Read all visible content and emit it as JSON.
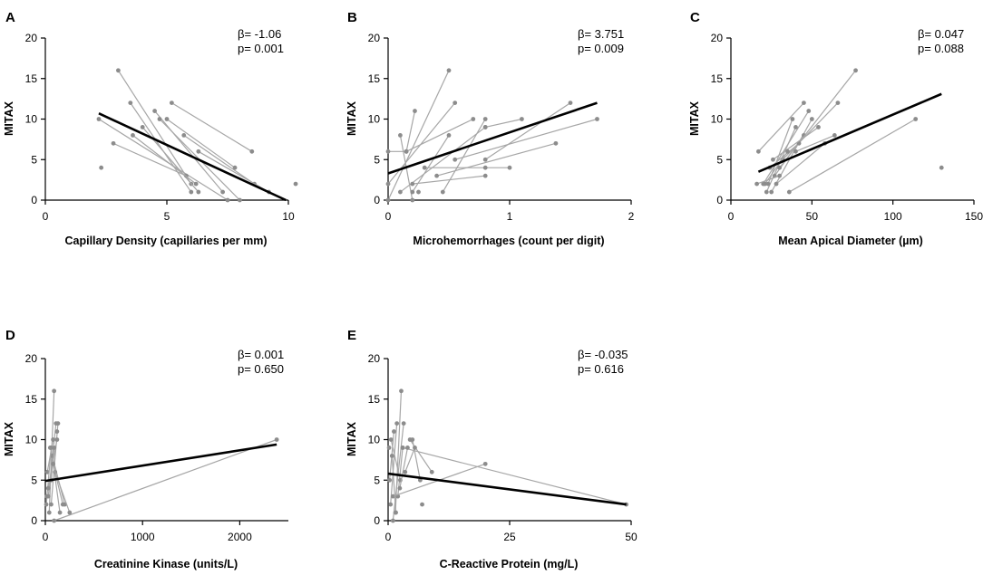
{
  "figure": {
    "y_axis_label": "MITAX"
  },
  "chart_data": [
    {
      "type": "scatter",
      "panel": "A",
      "xlabel": "Capillary Density (capillaries per mm)",
      "ylabel": "MITAX",
      "xlim": [
        0,
        10
      ],
      "ylim": [
        0,
        20
      ],
      "xticks": [
        0,
        5,
        10
      ],
      "yticks": [
        0,
        5,
        10,
        15,
        20
      ],
      "stats": {
        "beta": "β= -1.06",
        "p": "p= 0.001"
      },
      "fit": {
        "x": [
          2.2,
          9.9
        ],
        "y": [
          10.7,
          0
        ]
      },
      "pairs": [
        {
          "x": [
            3.0,
            6.0
          ],
          "y": [
            16,
            2
          ]
        },
        {
          "x": [
            2.2,
            7.5
          ],
          "y": [
            10,
            0
          ]
        },
        {
          "x": [
            3.5,
            6.0
          ],
          "y": [
            12,
            1
          ]
        },
        {
          "x": [
            4.0,
            6.3
          ],
          "y": [
            9,
            1
          ]
        },
        {
          "x": [
            4.5,
            7.3
          ],
          "y": [
            11,
            1
          ]
        },
        {
          "x": [
            5.2,
            8.5
          ],
          "y": [
            12,
            6
          ]
        },
        {
          "x": [
            2.8,
            5.8
          ],
          "y": [
            7,
            3
          ]
        },
        {
          "x": [
            4.7,
            8.0
          ],
          "y": [
            10,
            0
          ]
        },
        {
          "x": [
            5.0,
            7.8
          ],
          "y": [
            10,
            4
          ]
        },
        {
          "x": [
            5.7,
            8.6
          ],
          "y": [
            8,
            2
          ]
        },
        {
          "x": [
            3.6,
            6.2
          ],
          "y": [
            8,
            2
          ]
        },
        {
          "x": [
            6.3,
            9.2
          ],
          "y": [
            6,
            1
          ]
        }
      ],
      "points": [
        {
          "x": 2.3,
          "y": 4
        },
        {
          "x": 10.3,
          "y": 2
        }
      ]
    },
    {
      "type": "scatter",
      "panel": "B",
      "xlabel": "Microhemorrhages (count per digit)",
      "ylabel": "MITAX",
      "xlim": [
        0,
        2
      ],
      "ylim": [
        0,
        20
      ],
      "xticks": [
        0,
        1,
        2
      ],
      "yticks": [
        0,
        5,
        10,
        15,
        20
      ],
      "stats": {
        "beta": "β= 3.751",
        "p": "p= 0.009"
      },
      "fit": {
        "x": [
          0.0,
          1.72
        ],
        "y": [
          3.3,
          12.0
        ]
      },
      "pairs": [
        {
          "x": [
            0.0,
            0.5
          ],
          "y": [
            0,
            16
          ]
        },
        {
          "x": [
            0.0,
            0.55
          ],
          "y": [
            2,
            12
          ]
        },
        {
          "x": [
            0.0,
            0.15
          ],
          "y": [
            6,
            6
          ]
        },
        {
          "x": [
            0.1,
            0.2
          ],
          "y": [
            8,
            0
          ]
        },
        {
          "x": [
            0.15,
            0.22
          ],
          "y": [
            6,
            11
          ]
        },
        {
          "x": [
            0.2,
            0.5
          ],
          "y": [
            1,
            8
          ]
        },
        {
          "x": [
            0.1,
            0.8
          ],
          "y": [
            1,
            9
          ]
        },
        {
          "x": [
            0.3,
            1.0
          ],
          "y": [
            4,
            4
          ]
        },
        {
          "x": [
            0.45,
            0.8
          ],
          "y": [
            1,
            10
          ]
        },
        {
          "x": [
            0.55,
            1.72
          ],
          "y": [
            5,
            10
          ]
        },
        {
          "x": [
            0.8,
            1.5
          ],
          "y": [
            5,
            12
          ]
        },
        {
          "x": [
            0.4,
            1.38
          ],
          "y": [
            3,
            7
          ]
        },
        {
          "x": [
            0.15,
            0.7
          ],
          "y": [
            6,
            10
          ]
        },
        {
          "x": [
            0.8,
            1.1
          ],
          "y": [
            9,
            10
          ]
        },
        {
          "x": [
            0.2,
            0.8
          ],
          "y": [
            2,
            3
          ]
        }
      ],
      "points": [
        {
          "x": 0.8,
          "y": 4
        },
        {
          "x": 0.25,
          "y": 1
        }
      ]
    },
    {
      "type": "scatter",
      "panel": "C",
      "xlabel": "Mean Apical Diameter (µm)",
      "ylabel": "MITAX",
      "xlim": [
        0,
        150
      ],
      "ylim": [
        0,
        20
      ],
      "xticks": [
        0,
        50,
        100,
        150
      ],
      "yticks": [
        0,
        5,
        10,
        15,
        20
      ],
      "stats": {
        "beta": "β= 0.047",
        "p": "p= 0.088"
      },
      "fit": {
        "x": [
          17,
          130
        ],
        "y": [
          3.5,
          13.1
        ]
      },
      "pairs": [
        {
          "x": [
            17,
            45
          ],
          "y": [
            6,
            12
          ]
        },
        {
          "x": [
            20,
            48
          ],
          "y": [
            2,
            11
          ]
        },
        {
          "x": [
            22,
            40
          ],
          "y": [
            1,
            9
          ]
        },
        {
          "x": [
            23,
            38
          ],
          "y": [
            2,
            10
          ]
        },
        {
          "x": [
            25,
            50
          ],
          "y": [
            1,
            10
          ]
        },
        {
          "x": [
            27,
            45
          ],
          "y": [
            3,
            8
          ]
        },
        {
          "x": [
            30,
            77
          ],
          "y": [
            4,
            16
          ]
        },
        {
          "x": [
            32,
            66
          ],
          "y": [
            5,
            12
          ]
        },
        {
          "x": [
            28,
            58
          ],
          "y": [
            2,
            7
          ]
        },
        {
          "x": [
            36,
            114
          ],
          "y": [
            1,
            10
          ]
        },
        {
          "x": [
            24,
            42
          ],
          "y": [
            4,
            7
          ]
        },
        {
          "x": [
            26,
            54
          ],
          "y": [
            5,
            9
          ]
        },
        {
          "x": [
            21,
            35
          ],
          "y": [
            2,
            6
          ]
        },
        {
          "x": [
            40,
            64
          ],
          "y": [
            6,
            8
          ]
        },
        {
          "x": [
            16,
            30
          ],
          "y": [
            2,
            3
          ]
        }
      ],
      "points": [
        {
          "x": 130,
          "y": 4
        }
      ]
    },
    {
      "type": "scatter",
      "panel": "D",
      "xlabel": "Creatinine  Kinase  (units/L)",
      "ylabel": "MITAX",
      "xlim": [
        0,
        2500
      ],
      "ylim": [
        0,
        20
      ],
      "xticks": [
        0,
        1000,
        2000
      ],
      "yticks": [
        0,
        5,
        10,
        15,
        20
      ],
      "stats": {
        "beta": "β= 0.001",
        "p": "p= 0.650"
      },
      "fit": {
        "x": [
          0,
          2380
        ],
        "y": [
          4.9,
          9.4
        ]
      },
      "pairs": [
        {
          "x": [
            40,
            90
          ],
          "y": [
            1,
            16
          ]
        },
        {
          "x": [
            30,
            110
          ],
          "y": [
            3,
            12
          ]
        },
        {
          "x": [
            60,
            130
          ],
          "y": [
            2,
            12
          ]
        },
        {
          "x": [
            20,
            80
          ],
          "y": [
            6,
            10
          ]
        },
        {
          "x": [
            50,
            200
          ],
          "y": [
            9,
            2
          ]
        },
        {
          "x": [
            70,
            150
          ],
          "y": [
            8,
            1
          ]
        },
        {
          "x": [
            90,
            2380
          ],
          "y": [
            0,
            10
          ]
        },
        {
          "x": [
            10,
            60
          ],
          "y": [
            2,
            9
          ]
        },
        {
          "x": [
            100,
            250
          ],
          "y": [
            6,
            1
          ]
        },
        {
          "x": [
            30,
            120
          ],
          "y": [
            4,
            10
          ]
        },
        {
          "x": [
            60,
            90
          ],
          "y": [
            5,
            9
          ]
        },
        {
          "x": [
            80,
            180
          ],
          "y": [
            7,
            2
          ]
        }
      ],
      "points": [
        {
          "x": 15,
          "y": 3
        },
        {
          "x": 120,
          "y": 11
        }
      ]
    },
    {
      "type": "scatter",
      "panel": "E",
      "xlabel": "C-Reactive Protein  (mg/L)",
      "ylabel": "MITAX",
      "xlim": [
        0,
        50
      ],
      "ylim": [
        0,
        20
      ],
      "xticks": [
        0,
        25,
        50
      ],
      "yticks": [
        0,
        5,
        10,
        15,
        20
      ],
      "stats": {
        "beta": "β= -0.035",
        "p": "p= 0.616"
      },
      "fit": {
        "x": [
          0,
          49
        ],
        "y": [
          5.8,
          2.0
        ]
      },
      "pairs": [
        {
          "x": [
            1.5,
            2.7
          ],
          "y": [
            1,
            16
          ]
        },
        {
          "x": [
            0.5,
            1.8
          ],
          "y": [
            2,
            12
          ]
        },
        {
          "x": [
            1.0,
            3.2
          ],
          "y": [
            0,
            12
          ]
        },
        {
          "x": [
            2.0,
            3.0
          ],
          "y": [
            3,
            9
          ]
        },
        {
          "x": [
            0.6,
            2.5
          ],
          "y": [
            10,
            5
          ]
        },
        {
          "x": [
            3.0,
            49
          ],
          "y": [
            9,
            2
          ]
        },
        {
          "x": [
            4.5,
            9.0
          ],
          "y": [
            10,
            6
          ]
        },
        {
          "x": [
            1.0,
            20
          ],
          "y": [
            3,
            7
          ]
        },
        {
          "x": [
            5.0,
            6.6
          ],
          "y": [
            10,
            5
          ]
        },
        {
          "x": [
            0.3,
            1.2
          ],
          "y": [
            5,
            11
          ]
        },
        {
          "x": [
            2.4,
            4.0
          ],
          "y": [
            4,
            9
          ]
        },
        {
          "x": [
            0.8,
            1.6
          ],
          "y": [
            8,
            1
          ]
        },
        {
          "x": [
            3.5,
            5.5
          ],
          "y": [
            6,
            9
          ]
        }
      ],
      "points": [
        {
          "x": 7.0,
          "y": 2
        },
        {
          "x": 0.2,
          "y": 9
        }
      ]
    }
  ]
}
